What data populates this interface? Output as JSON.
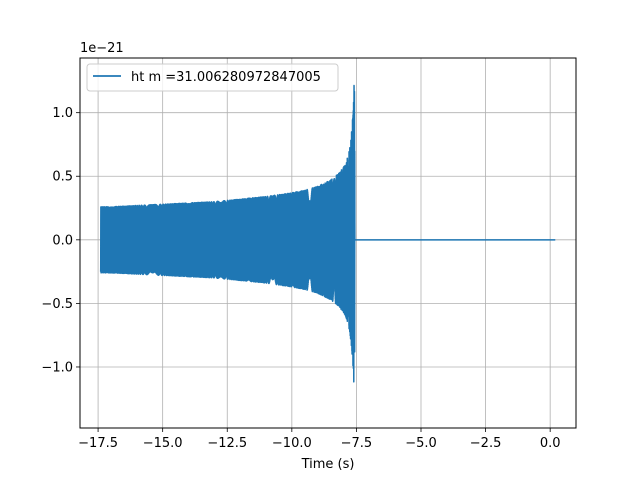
{
  "chart_data": {
    "type": "line",
    "xlabel": "Time (s)",
    "ylabel": "",
    "y_offset_label": "1e−21",
    "y_scale_exponent": -21,
    "xlim": [
      -18.2,
      1.0
    ],
    "ylim": [
      -1.48,
      1.43
    ],
    "x_ticks": [
      -17.5,
      -15.0,
      -12.5,
      -10.0,
      -7.5,
      -5.0,
      -2.5,
      0.0
    ],
    "x_tick_labels": [
      "−17.5",
      "−15.0",
      "−12.5",
      "−10.0",
      "−7.5",
      "−5.0",
      "−2.5",
      "0.0"
    ],
    "y_ticks": [
      -1.0,
      -0.5,
      0.0,
      0.5,
      1.0
    ],
    "y_tick_labels": [
      "−1.0",
      "−0.5",
      "0.0",
      "0.5",
      "1.0"
    ],
    "grid": true,
    "legend_position": "top-left",
    "series": [
      {
        "name": "ht m =31.006280972847005",
        "color": "#1f77b4",
        "description": "gravitational-wave chirp strain (×1e−21)",
        "x": [
          -17.4,
          -17.0,
          -16.0,
          -15.0,
          -14.0,
          -13.0,
          -12.0,
          -11.0,
          -10.0,
          -9.5,
          -9.0,
          -8.5,
          -8.2,
          -8.0,
          -7.9,
          -7.8,
          -7.75,
          -7.7,
          -7.65,
          -7.6,
          -7.58,
          -7.56,
          -7.55,
          -7.5,
          -5.0,
          -2.5,
          0.2
        ],
        "envelope": [
          0.26,
          0.26,
          0.27,
          0.28,
          0.29,
          0.3,
          0.32,
          0.34,
          0.37,
          0.39,
          0.42,
          0.47,
          0.52,
          0.57,
          0.61,
          0.68,
          0.74,
          0.82,
          0.95,
          1.15,
          1.31,
          0.6,
          0.02,
          0.0,
          0.0,
          0.0,
          0.0
        ]
      }
    ]
  }
}
